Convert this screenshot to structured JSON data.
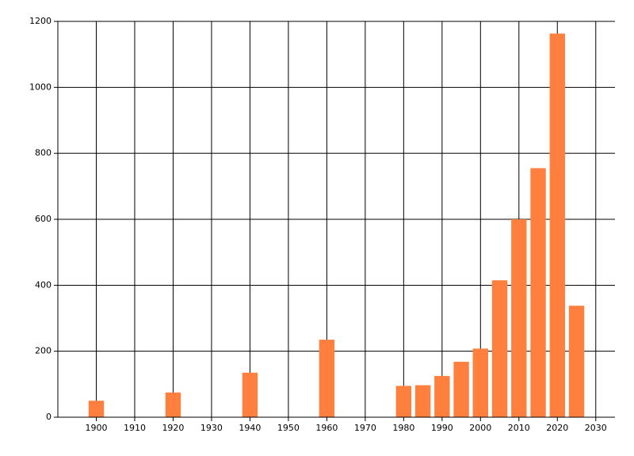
{
  "chart_data": {
    "type": "bar",
    "x": [
      1900,
      1920,
      1940,
      1960,
      1980,
      1985,
      1990,
      1995,
      2000,
      2005,
      2010,
      2015,
      2020,
      2025
    ],
    "values": [
      50,
      75,
      135,
      235,
      95,
      97,
      125,
      168,
      208,
      415,
      600,
      755,
      1163,
      338
    ],
    "color": "#ff7f3f",
    "xlim": [
      1890,
      2035
    ],
    "xticks": [
      1900,
      1910,
      1920,
      1930,
      1940,
      1950,
      1960,
      1970,
      1980,
      1990,
      2000,
      2010,
      2020,
      2030
    ],
    "ylim": [
      0,
      1200
    ],
    "yticks": [
      0,
      200,
      400,
      600,
      800,
      1000,
      1200
    ],
    "grid": true
  }
}
